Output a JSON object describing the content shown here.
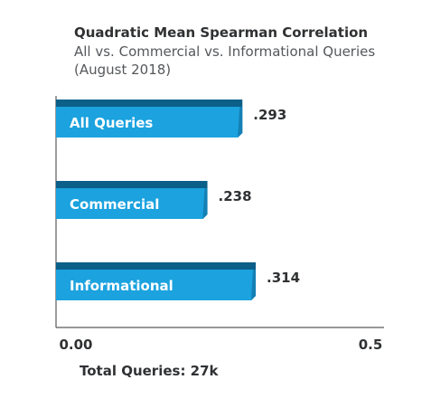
{
  "header": {
    "title": "Quadratic Mean Spearman Correlation",
    "subtitle": "All vs. Commercial vs. Informational Queries (August 2018)"
  },
  "footer": {
    "text": "Total Queries: 27k"
  },
  "colors": {
    "bar_face": "#1ba2df",
    "bar_top": "#0c5f88",
    "bar_side": "#1580b4",
    "axis": "#5a5a5a",
    "bar_label": "#ffffff",
    "value_label": "#2f3133"
  },
  "chart_data": {
    "type": "bar",
    "orientation": "horizontal",
    "title": "Quadratic Mean Spearman Correlation",
    "subtitle": "All vs. Commercial vs. Informational Queries (August 2018)",
    "categories": [
      "All Queries",
      "Commercial",
      "Informational"
    ],
    "values": [
      0.293,
      0.238,
      0.314
    ],
    "value_labels": [
      ".293",
      ".238",
      ".314"
    ],
    "x_ticks": [
      "0.00",
      "0.5"
    ],
    "xlim": [
      0,
      0.5
    ],
    "grid": false,
    "legend": "none"
  }
}
